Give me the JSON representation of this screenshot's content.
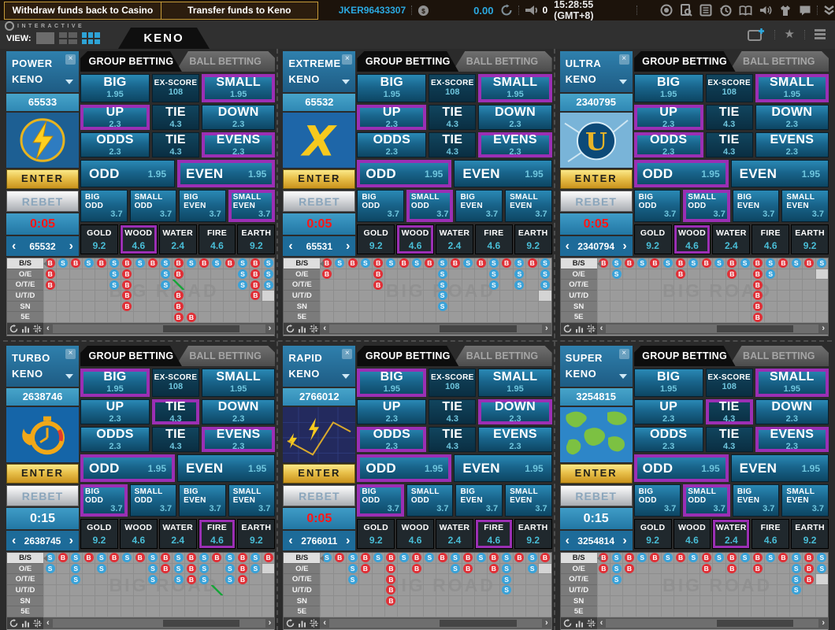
{
  "top_bar": {
    "withdraw_button": "Withdraw funds back to Casino",
    "transfer_button": "Transfer funds to Keno",
    "user_id": "JKER96433307",
    "balance": "0.00",
    "notification_count": "0",
    "time": "15:28:55 (GMT+8)"
  },
  "toolbar": {
    "brand": "INTERACTIVE",
    "view_label": "VIEW:",
    "keno_tab": "KENO"
  },
  "colors": {
    "accent_blue": "#2ba9e0",
    "selected_purple": "#9b2fb4",
    "bead_red": "#e02f36",
    "bead_blue": "#3aa2d8",
    "timer_red": "#ff1515",
    "gold": "#d4a017"
  },
  "panel_template": {
    "tabs": {
      "group": "GROUP BETTING",
      "ball": "BALL BETTING"
    },
    "enter_label": "ENTER",
    "rebet_label": "REBET",
    "road_row_labels": [
      "B/S",
      "O/E",
      "O/T/E",
      "U/T/D",
      "SN",
      "5E"
    ],
    "road_watermark": "BIG ROAD",
    "bet_rows": [
      {
        "type": "stacked3",
        "bets": [
          {
            "key": "BIG",
            "label": "BIG",
            "odds": "1.95"
          },
          {
            "key": "EX_SCORE",
            "label": "EX-SCORE",
            "odds": "108",
            "dark": true
          },
          {
            "key": "SMALL",
            "label": "SMALL",
            "odds": "1.95"
          }
        ]
      },
      {
        "type": "stacked3",
        "bets": [
          {
            "key": "UP",
            "label": "UP",
            "odds": "2.3"
          },
          {
            "key": "TIE_UD",
            "label": "TIE",
            "odds": "4.3",
            "dark": true
          },
          {
            "key": "DOWN",
            "label": "DOWN",
            "odds": "2.3"
          }
        ]
      },
      {
        "type": "stacked3",
        "bets": [
          {
            "key": "ODDS",
            "label": "ODDS",
            "odds": "2.3"
          },
          {
            "key": "TIE_OE",
            "label": "TIE",
            "odds": "4.3",
            "dark": true
          },
          {
            "key": "EVENS",
            "label": "EVENS",
            "odds": "2.3"
          }
        ]
      },
      {
        "type": "wide2",
        "bets": [
          {
            "key": "ODD",
            "label": "ODD",
            "odds": "1.95"
          },
          {
            "key": "EVEN",
            "label": "EVEN",
            "odds": "1.95"
          }
        ]
      },
      {
        "type": "corner4",
        "bets": [
          {
            "key": "BIG_ODD",
            "label": "BIG ODD",
            "odds": "3.7"
          },
          {
            "key": "SMALL_ODD",
            "label": "SMALL ODD",
            "odds": "3.7"
          },
          {
            "key": "BIG_EVEN",
            "label": "BIG EVEN",
            "odds": "3.7"
          },
          {
            "key": "SMALL_EVEN",
            "label": "SMALL EVEN",
            "odds": "3.7"
          }
        ]
      },
      {
        "type": "element5",
        "bets": [
          {
            "key": "GOLD",
            "label": "GOLD",
            "odds": "9.2"
          },
          {
            "key": "WOOD",
            "label": "WOOD",
            "odds": "4.6"
          },
          {
            "key": "WATER",
            "label": "WATER",
            "odds": "2.4"
          },
          {
            "key": "FIRE",
            "label": "FIRE",
            "odds": "4.6"
          },
          {
            "key": "EARTH",
            "label": "EARTH",
            "odds": "9.2"
          }
        ]
      }
    ]
  },
  "panels": [
    {
      "name_line1": "POWER",
      "name_line2": "KENO",
      "round": "65533",
      "prev_round": "65532",
      "timer": "0:05",
      "timer_color": "red",
      "logo": "power",
      "selected": [
        "SMALL",
        "UP",
        "EVENS",
        "EVEN",
        "SMALL_EVEN",
        "WOOD"
      ],
      "road": {
        "bs": [
          "B",
          "S",
          "B",
          "S",
          "B",
          "S",
          "B",
          "S",
          "B",
          "S",
          "B",
          "S",
          "B",
          "S",
          "B",
          "S",
          "B",
          "S"
        ],
        "oe": [
          "B",
          "",
          "",
          "",
          "",
          "S",
          "B",
          "",
          "",
          "S",
          "B",
          "",
          "",
          "",
          "",
          "S",
          "B",
          "S"
        ],
        "ote": [
          "B",
          "",
          "",
          "",
          "",
          "S",
          "B",
          "",
          "",
          "S",
          "G",
          "",
          "",
          "",
          "",
          "S",
          "B",
          "S"
        ],
        "utd": [
          "",
          "",
          "",
          "",
          "",
          "",
          "B",
          "",
          "",
          "",
          "B",
          "",
          "",
          "",
          "",
          "",
          "B",
          "H"
        ],
        "sn": [
          "",
          "",
          "",
          "",
          "",
          "",
          "B",
          "",
          "",
          "",
          "B",
          "",
          "",
          "",
          "",
          "",
          "",
          ""
        ],
        "fe": [
          "",
          "",
          "",
          "",
          "",
          "",
          "",
          "",
          "",
          "",
          "B",
          "B",
          "",
          "",
          "",
          "",
          "",
          ""
        ]
      }
    },
    {
      "name_line1": "EXTREME",
      "name_line2": "KENO",
      "round": "65532",
      "prev_round": "65531",
      "timer": "0:05",
      "timer_color": "red",
      "logo": "extreme",
      "selected": [
        "SMALL",
        "UP",
        "EVENS",
        "ODD",
        "SMALL_ODD",
        "WOOD"
      ],
      "road": {
        "bs": [
          "B",
          "S",
          "B",
          "S",
          "B",
          "S",
          "B",
          "S",
          "B",
          "S",
          "B",
          "S",
          "B",
          "S",
          "B",
          "S",
          "B",
          "S"
        ],
        "oe": [
          "B",
          "",
          "",
          "",
          "B",
          "",
          "",
          "",
          "",
          "S",
          "",
          "",
          "",
          "S",
          "",
          "S",
          "",
          "S"
        ],
        "ote": [
          "",
          "",
          "",
          "",
          "B",
          "",
          "",
          "",
          "",
          "S",
          "",
          "",
          "",
          "S",
          "",
          "S",
          "",
          "S"
        ],
        "utd": [
          "",
          "",
          "",
          "",
          "",
          "",
          "",
          "",
          "",
          "S",
          "",
          "",
          "",
          "",
          "",
          "",
          "",
          "H"
        ],
        "sn": [
          "",
          "",
          "",
          "",
          "",
          "",
          "",
          "",
          "",
          "S",
          "",
          "",
          "",
          "",
          "",
          "",
          "",
          ""
        ],
        "fe": [
          "",
          "",
          "",
          "",
          "",
          "",
          "",
          "",
          "",
          "",
          "",
          "",
          "",
          "",
          "",
          "",
          "",
          ""
        ]
      }
    },
    {
      "name_line1": "ULTRA",
      "name_line2": "KENO",
      "round": "2340795",
      "prev_round": "2340794",
      "timer": "0:05",
      "timer_color": "red",
      "logo": "ultra",
      "selected": [
        "SMALL",
        "UP",
        "ODDS",
        "ODD",
        "SMALL_ODD",
        "WOOD"
      ],
      "road": {
        "bs": [
          "B",
          "S",
          "B",
          "S",
          "B",
          "S",
          "B",
          "S",
          "B",
          "S",
          "B",
          "S",
          "B",
          "S",
          "B",
          "S",
          "B",
          "S"
        ],
        "oe": [
          "",
          "S",
          "",
          "",
          "",
          "",
          "B",
          "",
          "",
          "",
          "B",
          "",
          "B",
          "S",
          "",
          "",
          "",
          "H"
        ],
        "ote": [
          "",
          "",
          "",
          "",
          "",
          "",
          "",
          "",
          "",
          "",
          "",
          "",
          "B",
          "",
          "",
          "",
          "",
          ""
        ],
        "utd": [
          "",
          "",
          "",
          "",
          "",
          "",
          "",
          "",
          "",
          "",
          "",
          "",
          "B",
          "",
          "",
          "",
          "",
          ""
        ],
        "sn": [
          "",
          "",
          "",
          "",
          "",
          "",
          "",
          "",
          "",
          "",
          "",
          "",
          "B",
          "",
          "",
          "",
          "",
          ""
        ],
        "fe": [
          "",
          "",
          "",
          "",
          "",
          "",
          "",
          "",
          "",
          "",
          "",
          "",
          "B",
          "",
          "",
          "",
          "",
          ""
        ]
      }
    },
    {
      "name_line1": "TURBO",
      "name_line2": "KENO",
      "round": "2638746",
      "prev_round": "2638745",
      "timer": "0:15",
      "timer_color": "white",
      "logo": "turbo",
      "selected": [
        "BIG",
        "TIE_UD",
        "EVENS",
        "ODD",
        "BIG_ODD",
        "FIRE"
      ],
      "road": {
        "bs": [
          "S",
          "B",
          "S",
          "B",
          "S",
          "B",
          "S",
          "B",
          "S",
          "B",
          "S",
          "B",
          "S",
          "B",
          "S",
          "B",
          "S",
          "B"
        ],
        "oe": [
          "S",
          "",
          "S",
          "",
          "S",
          "",
          "",
          "",
          "S",
          "B",
          "S",
          "B",
          "S",
          "",
          "S",
          "B",
          "S",
          "H"
        ],
        "ote": [
          "",
          "",
          "S",
          "",
          "",
          "",
          "",
          "",
          "S",
          "",
          "S",
          "B",
          "S",
          "",
          "S",
          "B",
          "",
          ""
        ],
        "utd": [
          "",
          "",
          "",
          "",
          "",
          "",
          "",
          "",
          "",
          "",
          "",
          "",
          "",
          "G",
          "",
          "",
          "",
          ""
        ],
        "sn": [
          "",
          "",
          "",
          "",
          "",
          "",
          "",
          "",
          "",
          "",
          "",
          "",
          "",
          "",
          "",
          "",
          "",
          ""
        ],
        "fe": [
          "",
          "",
          "",
          "",
          "",
          "",
          "",
          "",
          "",
          "",
          "",
          "",
          "",
          "",
          "",
          "",
          "",
          ""
        ]
      }
    },
    {
      "name_line1": "RAPID",
      "name_line2": "KENO",
      "round": "2766012",
      "prev_round": "2766011",
      "timer": "0:05",
      "timer_color": "red",
      "logo": "rapid",
      "selected": [
        "BIG",
        "DOWN",
        "ODDS",
        "ODD",
        "BIG_ODD",
        "FIRE"
      ],
      "road": {
        "bs": [
          "S",
          "B",
          "S",
          "B",
          "S",
          "B",
          "S",
          "B",
          "S",
          "B",
          "S",
          "B",
          "S",
          "B",
          "S",
          "B",
          "S",
          "B"
        ],
        "oe": [
          "",
          "",
          "S",
          "B",
          "",
          "B",
          "",
          "B",
          "",
          "",
          "S",
          "B",
          "",
          "B",
          "S",
          "",
          "S",
          "H"
        ],
        "ote": [
          "",
          "",
          "S",
          "",
          "",
          "B",
          "",
          "",
          "",
          "",
          "",
          "",
          "",
          "",
          "S",
          "",
          "",
          ""
        ],
        "utd": [
          "",
          "",
          "",
          "",
          "",
          "B",
          "",
          "",
          "",
          "",
          "",
          "",
          "",
          "",
          "S",
          "",
          "",
          ""
        ],
        "sn": [
          "",
          "",
          "",
          "",
          "",
          "B",
          "",
          "",
          "",
          "",
          "",
          "",
          "",
          "",
          "",
          "",
          "",
          ""
        ],
        "fe": [
          "",
          "",
          "",
          "",
          "",
          "",
          "",
          "",
          "",
          "",
          "",
          "",
          "",
          "",
          "",
          "",
          "",
          ""
        ]
      }
    },
    {
      "name_line1": "SUPER",
      "name_line2": "KENO",
      "round": "3254815",
      "prev_round": "3254814",
      "timer": "0:15",
      "timer_color": "white",
      "logo": "super",
      "selected": [
        "SMALL",
        "TIE_UD",
        "EVENS",
        "ODD",
        "SMALL_ODD",
        "WATER"
      ],
      "road": {
        "bs": [
          "B",
          "S",
          "B",
          "S",
          "B",
          "S",
          "B",
          "S",
          "B",
          "S",
          "B",
          "S",
          "B",
          "S",
          "B",
          "S",
          "B",
          "S"
        ],
        "oe": [
          "B",
          "S",
          "B",
          "",
          "",
          "",
          "",
          "",
          "B",
          "",
          "B",
          "",
          "B",
          "",
          "",
          "S",
          "B",
          "S"
        ],
        "ote": [
          "",
          "S",
          "",
          "",
          "",
          "",
          "",
          "",
          "",
          "",
          "",
          "",
          "",
          "",
          "",
          "S",
          "B",
          "H"
        ],
        "utd": [
          "",
          "",
          "",
          "",
          "",
          "",
          "",
          "",
          "",
          "",
          "",
          "",
          "",
          "",
          "",
          "S",
          "",
          ""
        ],
        "sn": [
          "",
          "",
          "",
          "",
          "",
          "",
          "",
          "",
          "",
          "",
          "",
          "",
          "",
          "",
          "",
          "",
          "",
          ""
        ],
        "fe": [
          "",
          "",
          "",
          "",
          "",
          "",
          "",
          "",
          "",
          "",
          "",
          "",
          "",
          "",
          "",
          "",
          "",
          ""
        ]
      }
    }
  ]
}
